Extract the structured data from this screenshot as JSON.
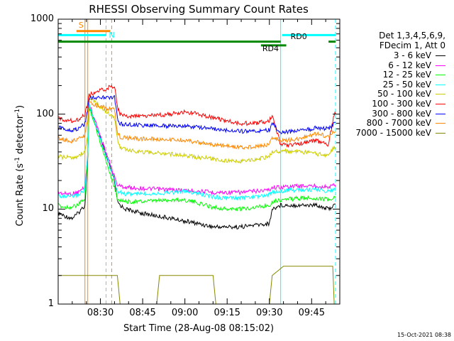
{
  "chart_data": {
    "type": "line",
    "title": "RHESSI Observing Summary Count Rates",
    "xlabel": "Start Time (28-Aug-08 08:15:02)",
    "ylabel_main": "Count Rate (s",
    "ylabel_sup1": "-1",
    "ylabel_mid": " detector",
    "ylabel_sup2": "-1",
    "ylabel_end": ")",
    "yscale": "log",
    "ylim": [
      1,
      1000
    ],
    "xlim_minutes": [
      0,
      100
    ],
    "x_ticks": [
      {
        "label": "08:30",
        "minute": 15
      },
      {
        "label": "08:45",
        "minute": 30
      },
      {
        "label": "09:00",
        "minute": 45
      },
      {
        "label": "09:15",
        "minute": 60
      },
      {
        "label": "09:30",
        "minute": 75
      },
      {
        "label": "09:45",
        "minute": 90
      }
    ],
    "y_ticks": [
      {
        "label": "1",
        "value": 1
      },
      {
        "label": "10",
        "value": 10
      },
      {
        "label": "100",
        "value": 100
      },
      {
        "label": "1000",
        "value": 1000
      }
    ],
    "legend_header": [
      "Det 1,3,4,5,6,9,",
      "FDecim 1, Att 0"
    ],
    "series": [
      {
        "name": "3 - 6 keV",
        "color": "#000000",
        "x": [
          0,
          2,
          5,
          7,
          9.5,
          10.5,
          11,
          20,
          21,
          22,
          24,
          30,
          40,
          50,
          55,
          60,
          65,
          70,
          75,
          76,
          79,
          85,
          90,
          92,
          96,
          98
        ],
        "y": [
          9,
          8.5,
          8,
          9,
          11,
          35,
          120,
          20,
          12,
          11,
          10,
          9,
          8,
          7,
          6.5,
          6.5,
          6.5,
          6.8,
          7,
          10,
          11,
          11,
          11,
          11,
          10,
          11
        ]
      },
      {
        "name": "6 - 12 keV",
        "color": "#ff00ff",
        "x": [
          0,
          2,
          5,
          7,
          9.5,
          10.5,
          11,
          20,
          21,
          22,
          24,
          30,
          40,
          50,
          55,
          60,
          65,
          70,
          75,
          76,
          79,
          85,
          90,
          92,
          96,
          98
        ],
        "y": [
          15,
          14.5,
          14.5,
          15,
          17,
          40,
          130,
          22,
          18,
          17.5,
          17,
          16.5,
          16,
          15.5,
          15,
          15,
          15,
          15.5,
          16,
          17,
          17,
          17.5,
          17.5,
          17.5,
          17,
          18
        ]
      },
      {
        "name": "12 - 25 keV",
        "color": "#00ff00",
        "x": [
          0,
          2,
          5,
          7,
          9.5,
          10.5,
          11,
          20,
          21,
          22,
          24,
          30,
          40,
          45,
          50,
          55,
          60,
          65,
          70,
          75,
          76,
          79,
          85,
          90,
          92,
          96,
          98
        ],
        "y": [
          11,
          10.5,
          10.5,
          11,
          13,
          35,
          120,
          17,
          13,
          12.5,
          12,
          12,
          12.5,
          12.5,
          11.5,
          10.5,
          10,
          10,
          10.5,
          11,
          12,
          12.5,
          13,
          13,
          13,
          12.5,
          13
        ]
      },
      {
        "name": "25 - 50 keV",
        "color": "#00ffff",
        "x": [
          0,
          2,
          5,
          7,
          9.5,
          10.5,
          11,
          20,
          21,
          22,
          24,
          30,
          40,
          45,
          50,
          55,
          60,
          65,
          70,
          75,
          76,
          79,
          85,
          90,
          92,
          96,
          98
        ],
        "y": [
          14,
          13.5,
          13.5,
          14,
          16,
          38,
          125,
          20,
          15.5,
          15,
          14.5,
          14.5,
          15,
          15.5,
          14.5,
          13.5,
          13,
          13,
          13.5,
          14,
          15,
          15.5,
          16,
          16,
          16,
          15.5,
          16
        ]
      },
      {
        "name": "50 - 100 keV",
        "color": "#cccc00",
        "x": [
          0,
          2,
          5,
          7,
          9.5,
          10.5,
          11,
          20,
          21,
          22,
          24,
          30,
          40,
          45,
          50,
          55,
          60,
          65,
          70,
          75,
          76,
          79,
          85,
          90,
          92,
          96,
          98
        ],
        "y": [
          36,
          35,
          35,
          36,
          40,
          60,
          150,
          90,
          55,
          45,
          42,
          40,
          38,
          37,
          35,
          34,
          32,
          32,
          33,
          36,
          40,
          41,
          40,
          39,
          38,
          37,
          45
        ]
      },
      {
        "name": "100 - 300 keV",
        "color": "#ff0000",
        "x": [
          0,
          2,
          5,
          7,
          9.5,
          10.5,
          11,
          20,
          21,
          22,
          24,
          30,
          40,
          45,
          50,
          55,
          60,
          65,
          70,
          75,
          76,
          79,
          85,
          90,
          92,
          96,
          98
        ],
        "y": [
          90,
          88,
          85,
          88,
          100,
          130,
          160,
          200,
          120,
          100,
          95,
          95,
          100,
          105,
          100,
          92,
          85,
          80,
          80,
          85,
          100,
          47,
          48,
          52,
          52,
          48,
          100
        ]
      },
      {
        "name": "300 - 800 keV",
        "color": "#0000ff",
        "x": [
          0,
          2,
          5,
          7,
          9.5,
          10.5,
          11,
          20,
          21,
          22,
          24,
          30,
          40,
          45,
          50,
          55,
          60,
          65,
          70,
          75,
          76,
          79,
          85,
          90,
          92,
          96,
          98
        ],
        "y": [
          72,
          70,
          68,
          70,
          80,
          110,
          150,
          150,
          90,
          80,
          78,
          76,
          75,
          75,
          72,
          70,
          68,
          66,
          66,
          68,
          80,
          64,
          66,
          70,
          72,
          70,
          80
        ]
      },
      {
        "name": "800 - 7000 keV",
        "color": "#ff8800",
        "x": [
          0,
          2,
          5,
          7,
          9.5,
          10.5,
          11,
          20,
          21,
          22,
          24,
          30,
          40,
          45,
          50,
          55,
          60,
          65,
          70,
          75,
          76,
          79,
          85,
          90,
          92,
          96,
          98
        ],
        "y": [
          56,
          54,
          52,
          54,
          60,
          90,
          130,
          110,
          65,
          58,
          56,
          55,
          54,
          53,
          50,
          48,
          46,
          45,
          45,
          48,
          58,
          52,
          55,
          60,
          62,
          58,
          65
        ]
      },
      {
        "name": "7000 - 15000 keV",
        "color": "#888800",
        "x": [
          0,
          5,
          9.5,
          10.5,
          21,
          22,
          23,
          35,
          36,
          48,
          55,
          56,
          75,
          76,
          80,
          85,
          90,
          96,
          97.5,
          98
        ],
        "y": [
          2,
          2,
          2,
          2,
          2,
          1,
          1,
          1,
          2,
          2,
          2,
          1,
          1,
          2,
          2.5,
          2.5,
          2.5,
          2.5,
          2.5,
          1
        ]
      }
    ],
    "markers": [
      {
        "kind": "bar",
        "label": "S",
        "color": "#ff8800",
        "x_start": 6.5,
        "x_end": 18.5,
        "y_value": 750
      },
      {
        "kind": "bar",
        "label": "N",
        "color": "#00ffff",
        "x_start": 0,
        "x_end": 17,
        "y_value": 680
      },
      {
        "kind": "bar",
        "label": "RD0",
        "color": "#00ffff",
        "x_start": 79.5,
        "x_end": 98.5,
        "y_value": 680
      },
      {
        "kind": "bar",
        "label": "",
        "color": "#008800",
        "x_start": 0,
        "x_end": 79,
        "y_value": 580
      },
      {
        "kind": "bar",
        "label": "RD4",
        "color": "#008800",
        "x_start": 72,
        "x_end": 81,
        "y_value": 530
      },
      {
        "kind": "bar",
        "label": "",
        "color": "#008800",
        "x_start": 96,
        "x_end": 98.5,
        "y_value": 580
      }
    ],
    "vlines": [
      {
        "x": 0,
        "color": "#00ffff",
        "style": "solid"
      },
      {
        "x": 9.5,
        "color": "#ff8800",
        "style": "solid"
      },
      {
        "x": 10.5,
        "color": "#ff8800",
        "style": "solid"
      },
      {
        "x": 17,
        "color": "#00ffff",
        "style": "dashed"
      },
      {
        "x": 19,
        "color": "#ff8800",
        "style": "dashed"
      },
      {
        "x": 79,
        "color": "#00ffff",
        "style": "solid"
      },
      {
        "x": 98.5,
        "color": "#00ffff",
        "style": "dashed"
      }
    ],
    "footer_timestamp": "15-Oct-2021 08:38"
  }
}
